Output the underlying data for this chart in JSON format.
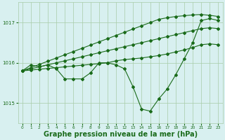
{
  "x": [
    0,
    1,
    2,
    3,
    4,
    5,
    6,
    7,
    8,
    9,
    10,
    11,
    12,
    13,
    14,
    15,
    16,
    17,
    18,
    19,
    20,
    21,
    22,
    23
  ],
  "line_measured": [
    1015.8,
    1015.95,
    1015.9,
    1015.95,
    1015.85,
    1015.6,
    1015.6,
    1015.6,
    1015.75,
    1016.0,
    1016.0,
    1015.95,
    1015.85,
    1015.4,
    1014.85,
    1014.8,
    1015.1,
    1015.35,
    1015.7,
    1016.1,
    1016.5,
    1017.05,
    1017.1,
    1017.05
  ],
  "line_upper1": [
    1015.8,
    1015.88,
    1015.96,
    1016.04,
    1016.12,
    1016.2,
    1016.28,
    1016.36,
    1016.44,
    1016.52,
    1016.6,
    1016.68,
    1016.76,
    1016.84,
    1016.92,
    1017.0,
    1017.08,
    1017.12,
    1017.15,
    1017.17,
    1017.19,
    1017.2,
    1017.18,
    1017.15
  ],
  "line_upper2": [
    1015.8,
    1015.85,
    1015.9,
    1015.95,
    1016.0,
    1016.05,
    1016.1,
    1016.15,
    1016.2,
    1016.25,
    1016.3,
    1016.35,
    1016.4,
    1016.45,
    1016.5,
    1016.55,
    1016.6,
    1016.65,
    1016.7,
    1016.75,
    1016.8,
    1016.85,
    1016.87,
    1016.85
  ],
  "line_upper3": [
    1015.8,
    1015.82,
    1015.84,
    1015.86,
    1015.88,
    1015.9,
    1015.92,
    1015.94,
    1015.96,
    1015.98,
    1016.0,
    1016.05,
    1016.08,
    1016.1,
    1016.12,
    1016.15,
    1016.18,
    1016.22,
    1016.27,
    1016.32,
    1016.38,
    1016.45,
    1016.47,
    1016.45
  ],
  "line_color": "#1a6b1a",
  "bg_color": "#d8f0f0",
  "grid_color": "#a8cca8",
  "xlabel": "Graphe pression niveau de la mer (hPa)",
  "xlabel_fontsize": 7,
  "ylabel_ticks": [
    1015,
    1016,
    1017
  ],
  "ylim": [
    1014.5,
    1017.5
  ],
  "xlim": [
    -0.5,
    23.5
  ]
}
